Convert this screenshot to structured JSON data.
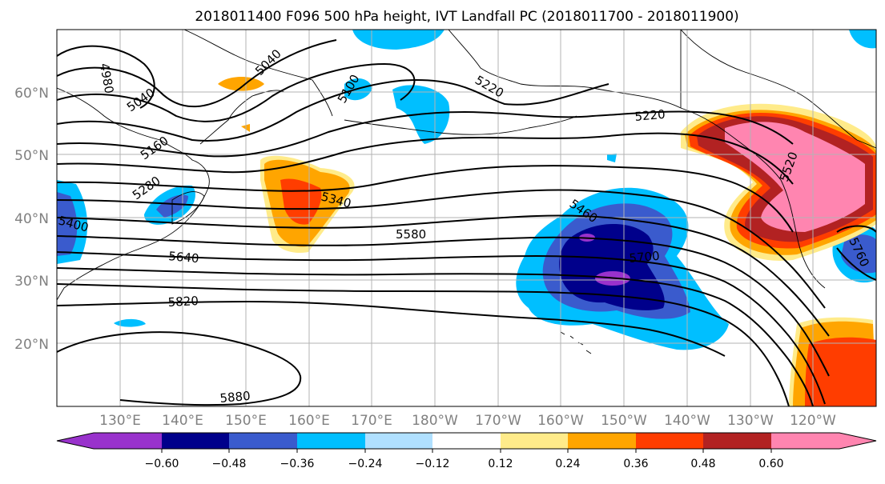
{
  "title": "2018011400 F096 500 hPa height, IVT Landfall PC (2018011700 - 2018011900)",
  "lat_labels": [
    "20°N",
    "30°N",
    "40°N",
    "50°N",
    "60°N"
  ],
  "lon_labels": [
    "130°E",
    "140°E",
    "150°E",
    "160°E",
    "170°E",
    "180°W",
    "170°W",
    "160°W",
    "150°W",
    "140°W",
    "130°W",
    "120°W"
  ],
  "contour_labels": [
    "4980",
    "5040",
    "5040",
    "5100",
    "5160",
    "5220",
    "5220",
    "5280",
    "5340",
    "5400",
    "5460",
    "5520",
    "5580",
    "5640",
    "5700",
    "5760",
    "5820",
    "5880"
  ],
  "colorbar": {
    "ticks": [
      "−0.60",
      "−0.48",
      "−0.36",
      "−0.24",
      "−0.12",
      "0.12",
      "0.24",
      "0.36",
      "0.48",
      "0.60"
    ],
    "colors": [
      "#9932CC",
      "#00008B",
      "#3A5BCD",
      "#00BFFF",
      "#B0E0FF",
      "#FFFFFF",
      "#FFEB8A",
      "#FFA500",
      "#FF3D00",
      "#B22222",
      "#FF85B0"
    ]
  }
}
